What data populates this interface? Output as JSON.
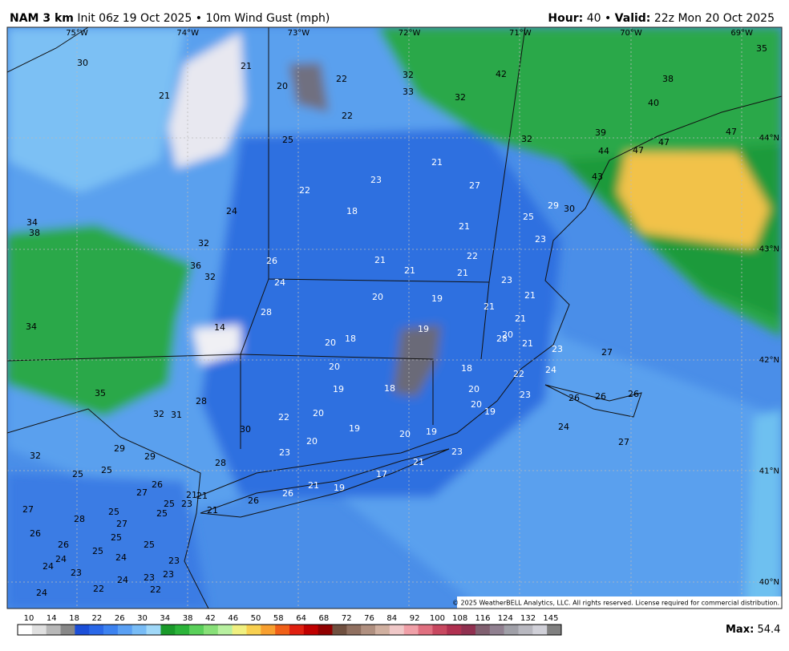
{
  "header": {
    "model": "NAM 3 km",
    "init": "Init 06z 19 Oct 2025 • 10m Wind Gust (mph)",
    "hour_label": "Hour:",
    "hour_value": "40 •",
    "valid_label": "Valid:",
    "valid_value": "22z Mon 20 Oct 2025"
  },
  "map": {
    "lon_labels": [
      "75°W",
      "74°W",
      "73°W",
      "72°W",
      "71°W",
      "70°W",
      "69°W"
    ],
    "lat_labels": [
      "44°N",
      "43°N",
      "42°N",
      "41°N",
      "40°N"
    ],
    "values": [
      30,
      21,
      20,
      22,
      32,
      33,
      32,
      42,
      35,
      38,
      40,
      21,
      22,
      25,
      32,
      39,
      44,
      47,
      47,
      47,
      21,
      23,
      27,
      43,
      22,
      18,
      24,
      29,
      30,
      25,
      34,
      38,
      21,
      32,
      23,
      22,
      21,
      26,
      36,
      21,
      21,
      32,
      24,
      23,
      20,
      19,
      21,
      21,
      28,
      21,
      34,
      14,
      19,
      20,
      28,
      18,
      20,
      21,
      23,
      27,
      20,
      18,
      24,
      22,
      19,
      18,
      20,
      23,
      26,
      26,
      26,
      35,
      28,
      20,
      19,
      32,
      31,
      22,
      20,
      19,
      24,
      30,
      20,
      19,
      20,
      27,
      29,
      23,
      23,
      32,
      29,
      28,
      21,
      25,
      25,
      17,
      26,
      27,
      21,
      19,
      21,
      21,
      26,
      25,
      23,
      26,
      27,
      25,
      25,
      21,
      28,
      27,
      26,
      25,
      26,
      25,
      25,
      24,
      24,
      23,
      24,
      23,
      23,
      24,
      23,
      22,
      22,
      24
    ],
    "copyright": "© 2025 WeatherBELL Analytics, LLC. All rights reserved. License required for commercial distribution."
  },
  "legend": {
    "ticks": [
      10,
      14,
      18,
      22,
      26,
      30,
      34,
      38,
      42,
      46,
      50,
      58,
      64,
      68,
      72,
      76,
      84,
      92,
      100,
      108,
      116,
      124,
      132,
      145
    ],
    "max_label": "Max:",
    "max_value": 54.4
  }
}
